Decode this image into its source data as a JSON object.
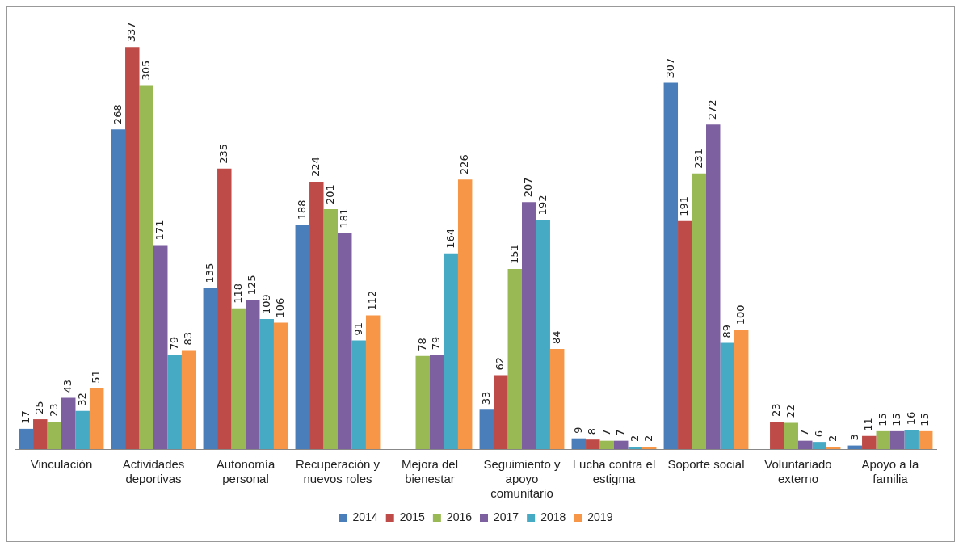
{
  "chart_data": {
    "type": "bar",
    "categories": [
      "Vinculación",
      "Actividades deportivas",
      "Autonomía personal",
      "Recuperación y nuevos roles",
      "Mejora del bienestar",
      "Seguimiento y apoyo comunitario",
      "Lucha contra el estigma",
      "Soporte social",
      "Voluntariado externo",
      "Apoyo a la familia"
    ],
    "series": [
      {
        "name": "2014",
        "color": "#4a7ebb",
        "values": [
          17,
          268,
          135,
          188,
          null,
          33,
          9,
          307,
          null,
          3
        ]
      },
      {
        "name": "2015",
        "color": "#be4b48",
        "values": [
          25,
          337,
          235,
          224,
          null,
          62,
          8,
          191,
          23,
          11
        ]
      },
      {
        "name": "2016",
        "color": "#98b954",
        "values": [
          23,
          305,
          118,
          201,
          78,
          151,
          7,
          231,
          22,
          15
        ]
      },
      {
        "name": "2017",
        "color": "#7d60a0",
        "values": [
          43,
          171,
          125,
          181,
          79,
          207,
          7,
          272,
          7,
          15
        ]
      },
      {
        "name": "2018",
        "color": "#46aac5",
        "values": [
          32,
          79,
          109,
          91,
          164,
          192,
          2,
          89,
          6,
          16
        ]
      },
      {
        "name": "2019",
        "color": "#f79646",
        "values": [
          51,
          83,
          106,
          112,
          226,
          84,
          2,
          100,
          2,
          15
        ]
      }
    ],
    "data_labels": true,
    "legend": "bottom",
    "grid": false
  }
}
